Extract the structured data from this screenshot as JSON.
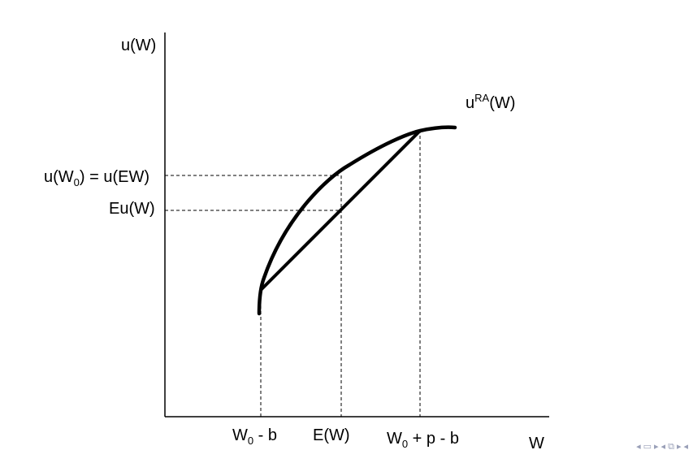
{
  "diagram": {
    "y_axis_label": "u(W)",
    "x_axis_label": "W",
    "curve_label": {
      "base": "u",
      "sup": "RA",
      "rest": "(W)"
    },
    "y_ticks": {
      "u_w0": {
        "part1": "u(W",
        "sub": "0",
        "part2": ") = u(EW)"
      },
      "eu": "Eu(W)"
    },
    "x_ticks": {
      "low": {
        "base": "W",
        "sub": "0",
        "rest": " - b"
      },
      "mean": "E(W)",
      "high": {
        "base": "W",
        "sub": "0",
        "rest": " + p - b"
      }
    }
  },
  "nav": {
    "icons": [
      "arrow-left-icon",
      "frame-icon",
      "arrow-right-icon",
      "arrow-left-icon",
      "subsection-icon",
      "arrow-right-icon",
      "arrow-left-icon"
    ]
  }
}
